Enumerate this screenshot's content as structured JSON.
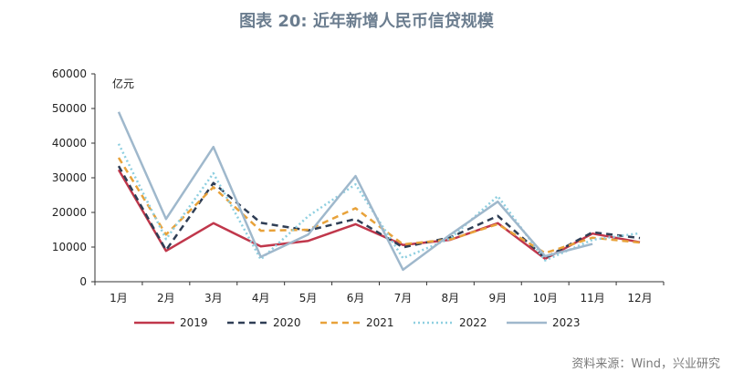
{
  "title": "图表 20: 近年新增人民币信贷规模",
  "source": "资料来源：Wind，兴业研究",
  "chart_data": {
    "type": "line",
    "categories": [
      "1月",
      "2月",
      "3月",
      "4月",
      "5月",
      "6月",
      "7月",
      "8月",
      "9月",
      "10月",
      "11月",
      "12月"
    ],
    "unit_label": "亿元",
    "ylim": [
      0,
      60000
    ],
    "yticks": [
      0,
      10000,
      20000,
      30000,
      40000,
      50000,
      60000
    ],
    "grid": false,
    "legend_position": "bottom",
    "series": [
      {
        "name": "2019",
        "color": "#c0374b",
        "dash": "solid",
        "values": [
          32300,
          8900,
          16900,
          10200,
          11800,
          16600,
          10600,
          12100,
          16900,
          6600,
          13900,
          11400
        ]
      },
      {
        "name": "2020",
        "color": "#2f3e55",
        "dash": "dashed",
        "values": [
          33400,
          9100,
          28500,
          17000,
          14800,
          18100,
          9927,
          12800,
          19000,
          6898,
          14300,
          12600
        ]
      },
      {
        "name": "2021",
        "color": "#e8a23a",
        "dash": "dashed",
        "values": [
          35800,
          13600,
          27300,
          14700,
          15000,
          21200,
          10800,
          12200,
          16600,
          8262,
          12700,
          11300
        ]
      },
      {
        "name": "2022",
        "color": "#8ecfe0",
        "dash": "dotted",
        "values": [
          39800,
          12300,
          31300,
          6454,
          18900,
          28100,
          6790,
          12500,
          24700,
          6152,
          12100,
          14000
        ]
      },
      {
        "name": "2023",
        "color": "#9fb8cc",
        "dash": "solid",
        "values": [
          49000,
          18100,
          38900,
          7188,
          13600,
          30500,
          3459,
          13600,
          23100,
          7384,
          10900,
          null
        ]
      }
    ]
  }
}
